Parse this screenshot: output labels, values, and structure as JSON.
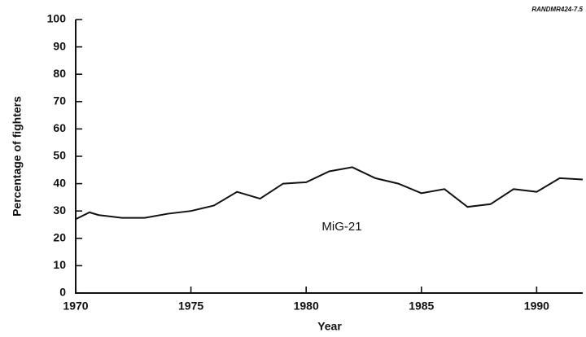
{
  "chart_data": {
    "type": "line",
    "source": "RANDMR424-7.5",
    "xlabel": "Year",
    "ylabel": "Percentage of fighters",
    "annotation": "MiG-21",
    "x": [
      1970,
      1970.6,
      1971,
      1972,
      1973,
      1974,
      1975,
      1976,
      1977,
      1978,
      1979,
      1980,
      1981,
      1982,
      1983,
      1984,
      1985,
      1986,
      1987,
      1988,
      1989,
      1990,
      1991,
      1992
    ],
    "series": [
      {
        "name": "MiG-21",
        "color": "#111111",
        "values": [
          27,
          29.5,
          28.5,
          27.5,
          27.5,
          29,
          30,
          32,
          37,
          34.5,
          40,
          40.5,
          44.5,
          46,
          42,
          40,
          36.5,
          38,
          31.5,
          32.5,
          38,
          37,
          42,
          41.5
        ]
      }
    ],
    "xlim": [
      1970,
      1992
    ],
    "xticks": [
      1970,
      1975,
      1980,
      1985,
      1990
    ],
    "ylim": [
      0,
      100
    ],
    "yticks": [
      0,
      10,
      20,
      30,
      40,
      50,
      60,
      70,
      80,
      90,
      100
    ],
    "grid": false
  }
}
